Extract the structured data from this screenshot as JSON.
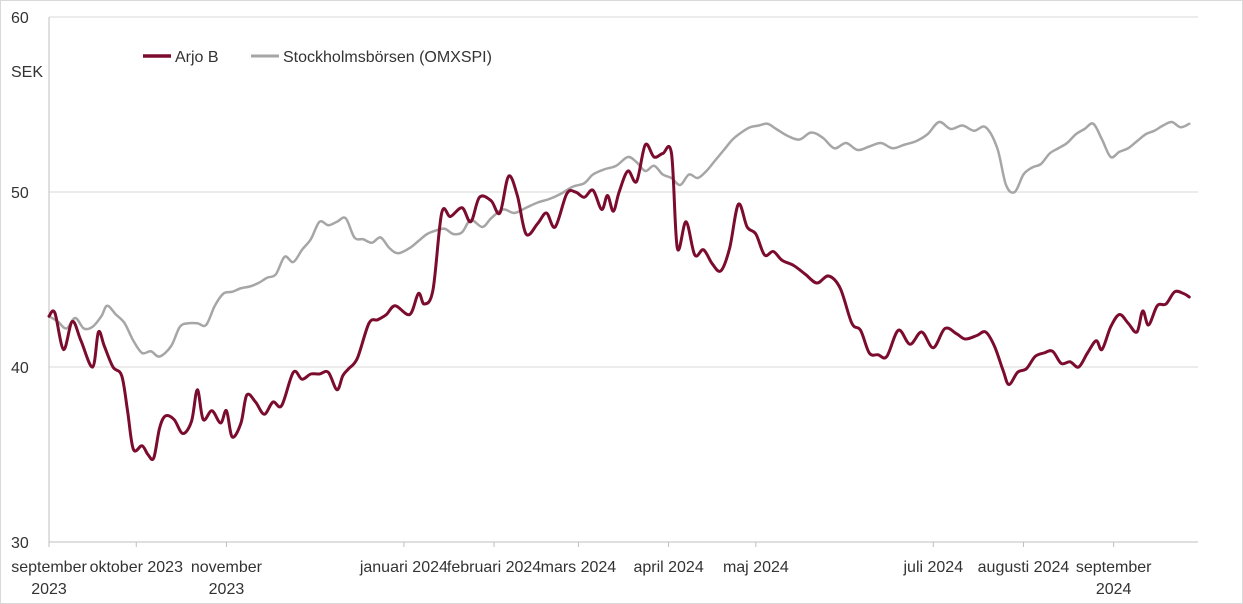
{
  "colors": {
    "arjo": "#7b0c2e",
    "index": "#a6a6a6",
    "grid": "#d9d9d9",
    "text": "#333333"
  },
  "chart_data": {
    "type": "line",
    "title": "",
    "unit": "SEK",
    "ylim": [
      30,
      60
    ],
    "yticks": [
      30,
      40,
      50,
      60
    ],
    "grid": "horizontal",
    "legend": {
      "position": "top-left",
      "entries": [
        "Arjo B",
        "Stockholmsbörsen (OMXSPI)"
      ]
    },
    "x_range": [
      "2023-09-01",
      "2024-09-30"
    ],
    "x_ticks": [
      {
        "date": "2023-09-01",
        "label": [
          "september",
          "2023"
        ]
      },
      {
        "date": "2023-10-01",
        "label": [
          "oktober 2023"
        ]
      },
      {
        "date": "2023-11-01",
        "label": [
          "november",
          "2023"
        ]
      },
      {
        "date": "2024-01-01",
        "label": [
          "januari 2024"
        ]
      },
      {
        "date": "2024-02-01",
        "label": [
          "februari 2024"
        ]
      },
      {
        "date": "2024-03-01",
        "label": [
          "mars 2024"
        ]
      },
      {
        "date": "2024-04-01",
        "label": [
          "april 2024"
        ]
      },
      {
        "date": "2024-05-01",
        "label": [
          "maj 2024"
        ]
      },
      {
        "date": "2024-07-01",
        "label": [
          "juli 2024"
        ]
      },
      {
        "date": "2024-08-01",
        "label": [
          "augusti 2024"
        ]
      },
      {
        "date": "2024-09-01",
        "label": [
          "september",
          "2024"
        ]
      }
    ],
    "series": [
      {
        "name": "Arjo B",
        "color": "#7b0c2e",
        "points": [
          [
            "2023-09-01",
            42.9
          ],
          [
            "2023-09-03",
            43.1
          ],
          [
            "2023-09-06",
            41.0
          ],
          [
            "2023-09-09",
            42.6
          ],
          [
            "2023-09-12",
            41.5
          ],
          [
            "2023-09-16",
            40.0
          ],
          [
            "2023-09-18",
            42.0
          ],
          [
            "2023-09-20",
            41.2
          ],
          [
            "2023-09-23",
            40.0
          ],
          [
            "2023-09-26",
            39.5
          ],
          [
            "2023-09-28",
            37.5
          ],
          [
            "2023-09-30",
            35.3
          ],
          [
            "2023-10-03",
            35.5
          ],
          [
            "2023-10-05",
            35.0
          ],
          [
            "2023-10-07",
            34.8
          ],
          [
            "2023-10-09",
            36.5
          ],
          [
            "2023-10-11",
            37.2
          ],
          [
            "2023-10-14",
            37.0
          ],
          [
            "2023-10-17",
            36.2
          ],
          [
            "2023-10-20",
            36.9
          ],
          [
            "2023-10-22",
            38.7
          ],
          [
            "2023-10-24",
            37.0
          ],
          [
            "2023-10-27",
            37.5
          ],
          [
            "2023-10-30",
            36.8
          ],
          [
            "2023-11-01",
            37.5
          ],
          [
            "2023-11-03",
            36.0
          ],
          [
            "2023-11-06",
            36.8
          ],
          [
            "2023-11-08",
            38.4
          ],
          [
            "2023-11-11",
            38.0
          ],
          [
            "2023-11-14",
            37.3
          ],
          [
            "2023-11-17",
            38.0
          ],
          [
            "2023-11-20",
            37.8
          ],
          [
            "2023-11-24",
            39.7
          ],
          [
            "2023-11-27",
            39.3
          ],
          [
            "2023-11-30",
            39.6
          ],
          [
            "2023-12-03",
            39.6
          ],
          [
            "2023-12-06",
            39.7
          ],
          [
            "2023-12-09",
            38.7
          ],
          [
            "2023-12-11",
            39.5
          ],
          [
            "2023-12-13",
            39.9
          ],
          [
            "2023-12-16",
            40.5
          ],
          [
            "2023-12-20",
            42.5
          ],
          [
            "2023-12-23",
            42.7
          ],
          [
            "2023-12-26",
            43.0
          ],
          [
            "2023-12-29",
            43.5
          ],
          [
            "2024-01-03",
            43.0
          ],
          [
            "2024-01-06",
            44.2
          ],
          [
            "2024-01-08",
            43.6
          ],
          [
            "2024-01-11",
            44.4
          ],
          [
            "2024-01-14",
            48.8
          ],
          [
            "2024-01-17",
            48.6
          ],
          [
            "2024-01-21",
            49.1
          ],
          [
            "2024-01-24",
            48.3
          ],
          [
            "2024-01-27",
            49.7
          ],
          [
            "2024-01-31",
            49.5
          ],
          [
            "2024-02-03",
            48.8
          ],
          [
            "2024-02-06",
            50.9
          ],
          [
            "2024-02-09",
            49.8
          ],
          [
            "2024-02-12",
            47.6
          ],
          [
            "2024-02-16",
            48.2
          ],
          [
            "2024-02-19",
            48.8
          ],
          [
            "2024-02-22",
            48.0
          ],
          [
            "2024-02-26",
            49.9
          ],
          [
            "2024-02-29",
            50.0
          ],
          [
            "2024-03-03",
            49.7
          ],
          [
            "2024-03-06",
            50.1
          ],
          [
            "2024-03-09",
            49.0
          ],
          [
            "2024-03-11",
            49.8
          ],
          [
            "2024-03-13",
            48.9
          ],
          [
            "2024-03-15",
            50.0
          ],
          [
            "2024-03-18",
            51.2
          ],
          [
            "2024-03-21",
            50.6
          ],
          [
            "2024-03-24",
            52.7
          ],
          [
            "2024-03-27",
            52.0
          ],
          [
            "2024-03-30",
            52.2
          ],
          [
            "2024-04-02",
            52.2
          ],
          [
            "2024-04-04",
            46.8
          ],
          [
            "2024-04-07",
            48.3
          ],
          [
            "2024-04-10",
            46.4
          ],
          [
            "2024-04-13",
            46.7
          ],
          [
            "2024-04-16",
            45.9
          ],
          [
            "2024-04-19",
            45.5
          ],
          [
            "2024-04-22",
            46.8
          ],
          [
            "2024-04-25",
            49.3
          ],
          [
            "2024-04-28",
            48.0
          ],
          [
            "2024-05-01",
            47.6
          ],
          [
            "2024-05-04",
            46.4
          ],
          [
            "2024-05-07",
            46.6
          ],
          [
            "2024-05-10",
            46.1
          ],
          [
            "2024-05-14",
            45.8
          ],
          [
            "2024-05-18",
            45.3
          ],
          [
            "2024-05-22",
            44.8
          ],
          [
            "2024-05-26",
            45.2
          ],
          [
            "2024-05-30",
            44.5
          ],
          [
            "2024-06-03",
            42.5
          ],
          [
            "2024-06-06",
            42.1
          ],
          [
            "2024-06-09",
            40.8
          ],
          [
            "2024-06-12",
            40.7
          ],
          [
            "2024-06-15",
            40.6
          ],
          [
            "2024-06-19",
            42.1
          ],
          [
            "2024-06-23",
            41.3
          ],
          [
            "2024-06-27",
            42.0
          ],
          [
            "2024-07-01",
            41.1
          ],
          [
            "2024-07-05",
            42.2
          ],
          [
            "2024-07-09",
            41.9
          ],
          [
            "2024-07-12",
            41.6
          ],
          [
            "2024-07-16",
            41.8
          ],
          [
            "2024-07-19",
            42.0
          ],
          [
            "2024-07-22",
            41.2
          ],
          [
            "2024-07-25",
            39.8
          ],
          [
            "2024-07-27",
            39.0
          ],
          [
            "2024-07-30",
            39.7
          ],
          [
            "2024-08-02",
            39.9
          ],
          [
            "2024-08-05",
            40.6
          ],
          [
            "2024-08-08",
            40.8
          ],
          [
            "2024-08-11",
            40.9
          ],
          [
            "2024-08-14",
            40.2
          ],
          [
            "2024-08-17",
            40.3
          ],
          [
            "2024-08-20",
            40.0
          ],
          [
            "2024-08-23",
            40.8
          ],
          [
            "2024-08-26",
            41.5
          ],
          [
            "2024-08-28",
            41.0
          ],
          [
            "2024-08-31",
            42.3
          ],
          [
            "2024-09-03",
            43.0
          ],
          [
            "2024-09-06",
            42.5
          ],
          [
            "2024-09-09",
            42.0
          ],
          [
            "2024-09-11",
            43.2
          ],
          [
            "2024-09-13",
            42.4
          ],
          [
            "2024-09-16",
            43.5
          ],
          [
            "2024-09-19",
            43.6
          ],
          [
            "2024-09-22",
            44.3
          ],
          [
            "2024-09-25",
            44.2
          ],
          [
            "2024-09-27",
            44.0
          ]
        ]
      },
      {
        "name": "Stockholmsbörsen (OMXSPI)",
        "color": "#a6a6a6",
        "points": [
          [
            "2023-09-01",
            42.9
          ],
          [
            "2023-09-04",
            42.6
          ],
          [
            "2023-09-07",
            42.2
          ],
          [
            "2023-09-10",
            42.8
          ],
          [
            "2023-09-13",
            42.2
          ],
          [
            "2023-09-16",
            42.3
          ],
          [
            "2023-09-19",
            42.9
          ],
          [
            "2023-09-21",
            43.5
          ],
          [
            "2023-09-24",
            43.0
          ],
          [
            "2023-09-27",
            42.5
          ],
          [
            "2023-09-30",
            41.5
          ],
          [
            "2023-10-03",
            40.8
          ],
          [
            "2023-10-06",
            40.9
          ],
          [
            "2023-10-09",
            40.6
          ],
          [
            "2023-10-13",
            41.2
          ],
          [
            "2023-10-16",
            42.3
          ],
          [
            "2023-10-19",
            42.5
          ],
          [
            "2023-10-22",
            42.5
          ],
          [
            "2023-10-25",
            42.4
          ],
          [
            "2023-10-28",
            43.5
          ],
          [
            "2023-10-31",
            44.2
          ],
          [
            "2023-11-03",
            44.3
          ],
          [
            "2023-11-06",
            44.5
          ],
          [
            "2023-11-09",
            44.6
          ],
          [
            "2023-11-12",
            44.8
          ],
          [
            "2023-11-15",
            45.1
          ],
          [
            "2023-11-18",
            45.3
          ],
          [
            "2023-11-21",
            46.3
          ],
          [
            "2023-11-24",
            46.0
          ],
          [
            "2023-11-27",
            46.7
          ],
          [
            "2023-11-30",
            47.3
          ],
          [
            "2023-12-03",
            48.3
          ],
          [
            "2023-12-06",
            48.1
          ],
          [
            "2023-12-09",
            48.3
          ],
          [
            "2023-12-12",
            48.5
          ],
          [
            "2023-12-15",
            47.4
          ],
          [
            "2023-12-18",
            47.3
          ],
          [
            "2023-12-21",
            47.1
          ],
          [
            "2023-12-24",
            47.4
          ],
          [
            "2023-12-27",
            46.8
          ],
          [
            "2023-12-30",
            46.5
          ],
          [
            "2024-01-03",
            46.8
          ],
          [
            "2024-01-06",
            47.2
          ],
          [
            "2024-01-09",
            47.6
          ],
          [
            "2024-01-12",
            47.8
          ],
          [
            "2024-01-15",
            47.9
          ],
          [
            "2024-01-18",
            47.6
          ],
          [
            "2024-01-21",
            47.7
          ],
          [
            "2024-01-24",
            48.4
          ],
          [
            "2024-01-28",
            48.0
          ],
          [
            "2024-01-31",
            48.5
          ],
          [
            "2024-02-04",
            49.0
          ],
          [
            "2024-02-08",
            48.8
          ],
          [
            "2024-02-12",
            49.1
          ],
          [
            "2024-02-16",
            49.4
          ],
          [
            "2024-02-20",
            49.6
          ],
          [
            "2024-02-24",
            49.9
          ],
          [
            "2024-02-28",
            50.3
          ],
          [
            "2024-03-03",
            50.5
          ],
          [
            "2024-03-06",
            51.0
          ],
          [
            "2024-03-10",
            51.3
          ],
          [
            "2024-03-14",
            51.5
          ],
          [
            "2024-03-18",
            52.0
          ],
          [
            "2024-03-21",
            51.7
          ],
          [
            "2024-03-24",
            51.2
          ],
          [
            "2024-03-27",
            51.5
          ],
          [
            "2024-03-30",
            51.0
          ],
          [
            "2024-04-02",
            50.8
          ],
          [
            "2024-04-05",
            50.4
          ],
          [
            "2024-04-08",
            51.0
          ],
          [
            "2024-04-11",
            50.8
          ],
          [
            "2024-04-14",
            51.2
          ],
          [
            "2024-04-17",
            51.8
          ],
          [
            "2024-04-20",
            52.4
          ],
          [
            "2024-04-23",
            53.0
          ],
          [
            "2024-04-26",
            53.4
          ],
          [
            "2024-04-29",
            53.7
          ],
          [
            "2024-05-02",
            53.8
          ],
          [
            "2024-05-05",
            53.9
          ],
          [
            "2024-05-08",
            53.6
          ],
          [
            "2024-05-12",
            53.2
          ],
          [
            "2024-05-16",
            53.0
          ],
          [
            "2024-05-20",
            53.4
          ],
          [
            "2024-05-24",
            53.1
          ],
          [
            "2024-05-28",
            52.5
          ],
          [
            "2024-06-01",
            52.8
          ],
          [
            "2024-06-05",
            52.4
          ],
          [
            "2024-06-09",
            52.6
          ],
          [
            "2024-06-13",
            52.8
          ],
          [
            "2024-06-17",
            52.5
          ],
          [
            "2024-06-21",
            52.7
          ],
          [
            "2024-06-25",
            52.9
          ],
          [
            "2024-06-29",
            53.3
          ],
          [
            "2024-07-03",
            54.0
          ],
          [
            "2024-07-07",
            53.6
          ],
          [
            "2024-07-11",
            53.8
          ],
          [
            "2024-07-15",
            53.5
          ],
          [
            "2024-07-19",
            53.7
          ],
          [
            "2024-07-23",
            52.5
          ],
          [
            "2024-07-26",
            50.4
          ],
          [
            "2024-07-29",
            50.0
          ],
          [
            "2024-08-01",
            51.0
          ],
          [
            "2024-08-04",
            51.4
          ],
          [
            "2024-08-07",
            51.6
          ],
          [
            "2024-08-10",
            52.2
          ],
          [
            "2024-08-13",
            52.5
          ],
          [
            "2024-08-16",
            52.8
          ],
          [
            "2024-08-19",
            53.3
          ],
          [
            "2024-08-22",
            53.6
          ],
          [
            "2024-08-25",
            53.9
          ],
          [
            "2024-08-28",
            53.0
          ],
          [
            "2024-08-31",
            52.0
          ],
          [
            "2024-09-03",
            52.3
          ],
          [
            "2024-09-06",
            52.5
          ],
          [
            "2024-09-09",
            52.9
          ],
          [
            "2024-09-12",
            53.3
          ],
          [
            "2024-09-15",
            53.5
          ],
          [
            "2024-09-18",
            53.8
          ],
          [
            "2024-09-21",
            54.0
          ],
          [
            "2024-09-24",
            53.7
          ],
          [
            "2024-09-27",
            53.9
          ]
        ]
      }
    ]
  }
}
